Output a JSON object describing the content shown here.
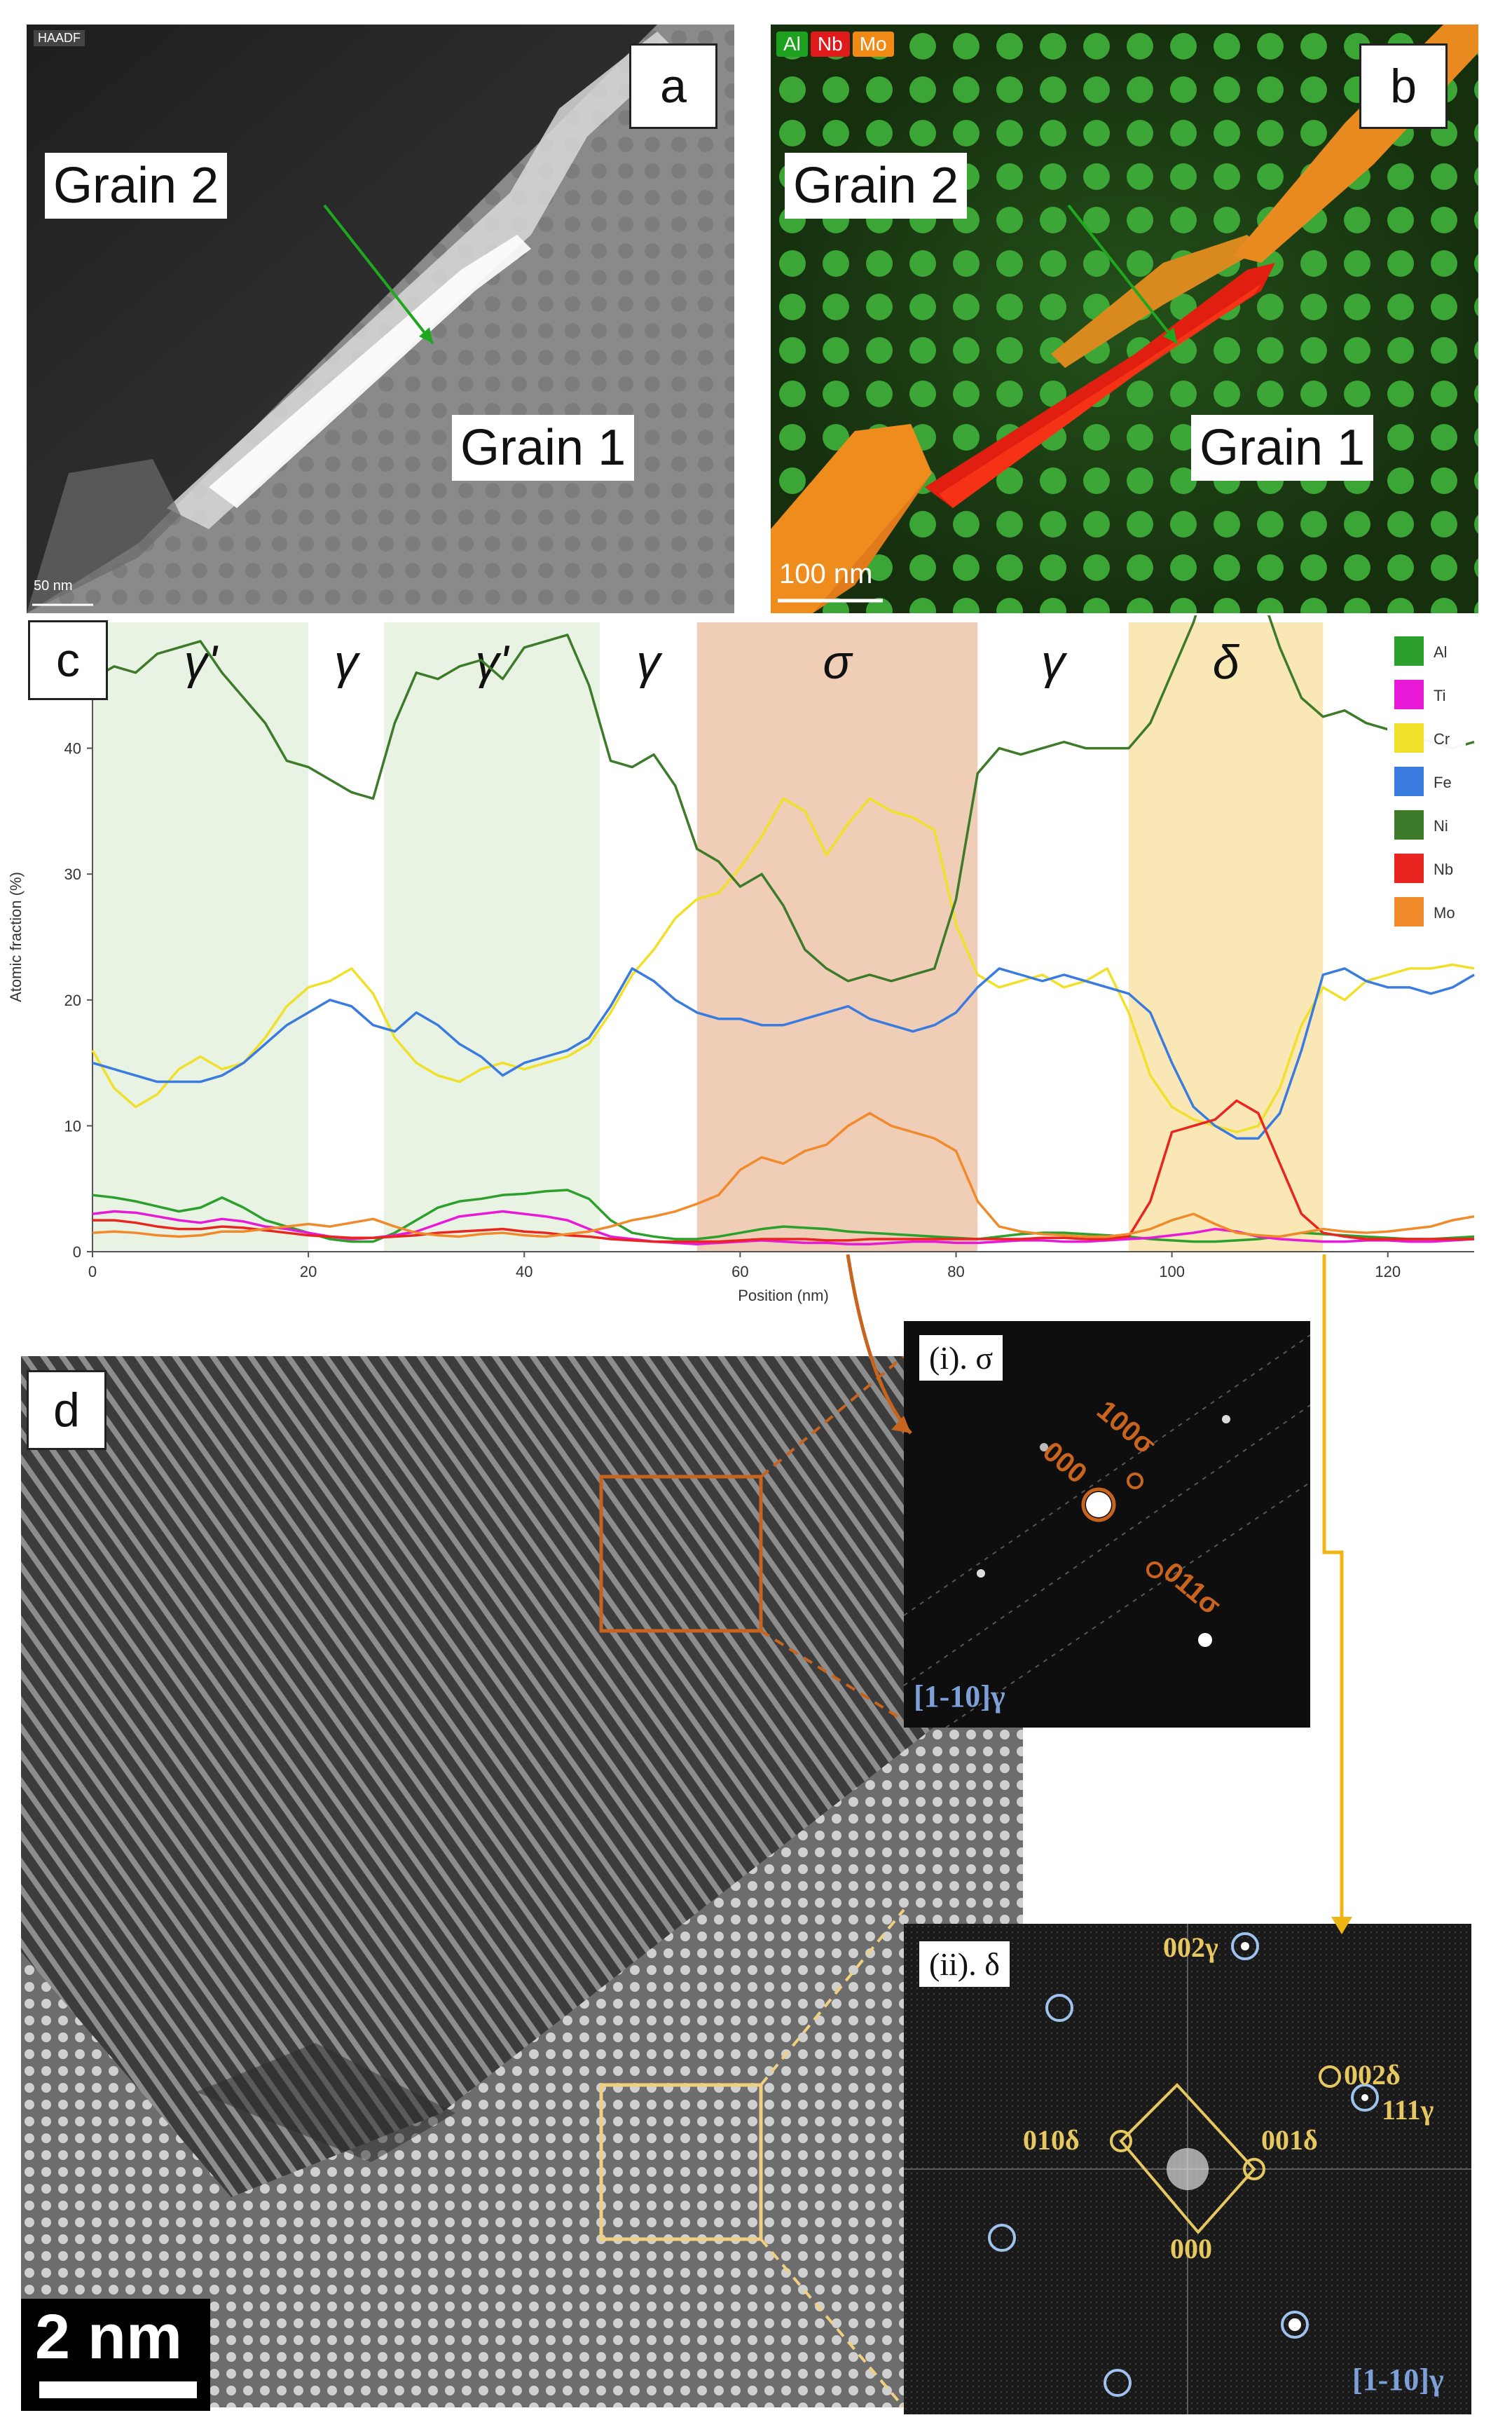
{
  "panel_a": {
    "letter": "a",
    "detector_label": "HAADF",
    "grain2": "Grain 2",
    "grain1": "Grain 1",
    "scale_label": "50 nm"
  },
  "panel_b": {
    "letter": "b",
    "element_tags": [
      "Al",
      "Nb",
      "Mo"
    ],
    "element_colors": [
      "#1ea11e",
      "#e01a1a",
      "#f08a14"
    ],
    "grain2": "Grain 2",
    "grain1": "Grain 1",
    "scale_label": "100 nm"
  },
  "panel_c": {
    "letter": "c",
    "phase_labels": [
      "γ'",
      "γ",
      "γ'",
      "γ",
      "σ",
      "γ",
      "δ"
    ]
  },
  "panel_d": {
    "letter": "d",
    "scale_label": "2 nm",
    "inset_sigma": {
      "title": "(i). σ",
      "spot_labels": [
        "100σ",
        "000",
        "011σ"
      ],
      "zone_axis": "[1-10]γ"
    },
    "inset_delta": {
      "title": "(ii). δ",
      "spot_labels": [
        "002γ",
        "010δ",
        "001δ",
        "002δ",
        "111γ",
        "000"
      ],
      "zone_axis": "[1-10]γ"
    }
  },
  "chart_data": {
    "type": "line",
    "title": "",
    "xlabel": "Position (nm)",
    "ylabel": "Atomic fraction (%)",
    "xlim": [
      0,
      128
    ],
    "ylim": [
      0,
      50
    ],
    "xticks": [
      0,
      20,
      40,
      60,
      80,
      100,
      120
    ],
    "yticks": [
      0,
      10,
      20,
      30,
      40
    ],
    "grid": false,
    "legend_position": "top-right",
    "phase_regions": [
      {
        "label": "γ'",
        "from": 0,
        "to": 20,
        "color": "#e9f3e4"
      },
      {
        "label": "γ",
        "from": 20,
        "to": 27,
        "color": "#ffffff"
      },
      {
        "label": "γ'",
        "from": 27,
        "to": 47,
        "color": "#e9f3e4"
      },
      {
        "label": "γ",
        "from": 47,
        "to": 56,
        "color": "#ffffff"
      },
      {
        "label": "σ",
        "from": 56,
        "to": 82,
        "color": "#efcdb6"
      },
      {
        "label": "γ",
        "from": 82,
        "to": 96,
        "color": "#ffffff"
      },
      {
        "label": "δ",
        "from": 96,
        "to": 114,
        "color": "#f9e7b6"
      }
    ],
    "x": [
      0,
      2,
      4,
      6,
      8,
      10,
      12,
      14,
      16,
      18,
      20,
      22,
      24,
      26,
      28,
      30,
      32,
      34,
      36,
      38,
      40,
      42,
      44,
      46,
      48,
      50,
      52,
      54,
      56,
      58,
      60,
      62,
      64,
      66,
      68,
      70,
      72,
      74,
      76,
      78,
      80,
      82,
      84,
      86,
      88,
      90,
      92,
      94,
      96,
      98,
      100,
      102,
      104,
      106,
      108,
      110,
      112,
      114,
      116,
      118,
      120,
      122,
      124,
      126,
      128
    ],
    "series": [
      {
        "name": "Al",
        "color": "#2ca02c",
        "values": [
          4.5,
          4.3,
          4.0,
          3.6,
          3.2,
          3.5,
          4.3,
          3.5,
          2.5,
          2.0,
          1.5,
          1.0,
          0.8,
          0.8,
          1.5,
          2.5,
          3.5,
          4.0,
          4.2,
          4.5,
          4.6,
          4.8,
          4.9,
          4.2,
          2.5,
          1.5,
          1.2,
          1.0,
          1.0,
          1.2,
          1.5,
          1.8,
          2.0,
          1.9,
          1.8,
          1.6,
          1.5,
          1.4,
          1.3,
          1.2,
          1.1,
          1.0,
          1.2,
          1.4,
          1.5,
          1.5,
          1.4,
          1.3,
          1.2,
          1.0,
          0.9,
          0.8,
          0.8,
          0.9,
          1.0,
          1.2,
          1.5,
          1.4,
          1.3,
          1.2,
          1.1,
          1.0,
          1.0,
          1.1,
          1.2
        ]
      },
      {
        "name": "Ti",
        "color": "#e81ad8",
        "values": [
          3.0,
          3.2,
          3.1,
          2.8,
          2.5,
          2.3,
          2.6,
          2.4,
          2.0,
          1.8,
          1.5,
          1.2,
          1.0,
          1.1,
          1.3,
          1.6,
          2.2,
          2.8,
          3.0,
          3.2,
          3.0,
          2.8,
          2.5,
          1.8,
          1.2,
          1.0,
          0.8,
          0.7,
          0.6,
          0.7,
          0.8,
          0.9,
          0.8,
          0.7,
          0.7,
          0.6,
          0.6,
          0.7,
          0.8,
          0.8,
          0.7,
          0.7,
          0.8,
          0.9,
          0.9,
          0.8,
          0.8,
          0.9,
          1.0,
          1.1,
          1.3,
          1.5,
          1.8,
          1.6,
          1.2,
          1.0,
          0.9,
          0.8,
          0.8,
          0.9,
          0.9,
          0.8,
          0.8,
          0.9,
          1.0
        ]
      },
      {
        "name": "Cr",
        "color": "#f0e02a",
        "values": [
          16.0,
          13.0,
          11.5,
          12.5,
          14.5,
          15.5,
          14.5,
          15.0,
          17.0,
          19.5,
          21.0,
          21.5,
          22.5,
          20.5,
          17.0,
          15.0,
          14.0,
          13.5,
          14.5,
          15.0,
          14.5,
          15.0,
          15.5,
          16.5,
          19.0,
          22.0,
          24.0,
          26.5,
          28.0,
          28.5,
          30.5,
          33.0,
          36.0,
          35.0,
          31.5,
          34.0,
          36.0,
          35.0,
          34.5,
          33.5,
          26.0,
          22.0,
          21.0,
          21.5,
          22.0,
          21.0,
          21.5,
          22.5,
          19.0,
          14.0,
          11.5,
          10.5,
          10.0,
          9.5,
          10.0,
          13.0,
          18.0,
          21.0,
          20.0,
          21.5,
          22.0,
          22.5,
          22.5,
          22.8,
          22.5
        ]
      },
      {
        "name": "Fe",
        "color": "#3a7be0",
        "values": [
          15.0,
          14.5,
          14.0,
          13.5,
          13.5,
          13.5,
          14.0,
          15.0,
          16.5,
          18.0,
          19.0,
          20.0,
          19.5,
          18.0,
          17.5,
          19.0,
          18.0,
          16.5,
          15.5,
          14.0,
          15.0,
          15.5,
          16.0,
          17.0,
          19.5,
          22.5,
          21.5,
          20.0,
          19.0,
          18.5,
          18.5,
          18.0,
          18.0,
          18.5,
          19.0,
          19.5,
          18.5,
          18.0,
          17.5,
          18.0,
          19.0,
          21.0,
          22.5,
          22.0,
          21.5,
          22.0,
          21.5,
          21.0,
          20.5,
          19.0,
          15.0,
          11.5,
          10.0,
          9.0,
          9.0,
          11.0,
          16.0,
          22.0,
          22.5,
          21.5,
          21.0,
          21.0,
          20.5,
          21.0,
          22.0
        ]
      },
      {
        "name": "Ni",
        "color": "#3d7a2a",
        "values": [
          45.5,
          46.5,
          46.0,
          47.5,
          48.0,
          48.5,
          46.0,
          44.0,
          42.0,
          39.0,
          38.5,
          37.5,
          36.5,
          36.0,
          42.0,
          46.0,
          45.5,
          46.5,
          47.0,
          45.5,
          48.0,
          48.5,
          49.0,
          45.0,
          39.0,
          38.5,
          39.5,
          37.0,
          32.0,
          31.0,
          29.0,
          30.0,
          27.5,
          24.0,
          22.5,
          21.5,
          22.0,
          21.5,
          22.0,
          22.5,
          28.0,
          38.0,
          40.0,
          39.5,
          40.0,
          40.5,
          40.0,
          40.0,
          40.0,
          42.0,
          46.0,
          50.0,
          55.5,
          55.0,
          53.0,
          48.0,
          44.0,
          42.5,
          43.0,
          42.0,
          41.5,
          41.0,
          40.5,
          40.0,
          40.5
        ]
      },
      {
        "name": "Nb",
        "color": "#e8251f",
        "values": [
          2.5,
          2.5,
          2.3,
          2.0,
          1.8,
          1.8,
          2.0,
          1.9,
          1.7,
          1.5,
          1.3,
          1.2,
          1.1,
          1.1,
          1.2,
          1.3,
          1.5,
          1.6,
          1.7,
          1.8,
          1.6,
          1.5,
          1.3,
          1.2,
          1.0,
          0.9,
          0.8,
          0.8,
          0.8,
          0.8,
          0.9,
          1.0,
          1.0,
          1.0,
          0.9,
          0.9,
          1.0,
          1.0,
          1.0,
          1.0,
          1.0,
          1.0,
          1.0,
          1.0,
          1.1,
          1.1,
          1.0,
          1.0,
          1.2,
          4.0,
          9.5,
          10.0,
          10.5,
          12.0,
          11.0,
          7.0,
          3.0,
          1.5,
          1.2,
          1.0,
          1.0,
          1.0,
          1.0,
          1.0,
          1.0
        ]
      },
      {
        "name": "Mo",
        "color": "#f08a2a",
        "values": [
          1.5,
          1.6,
          1.5,
          1.3,
          1.2,
          1.3,
          1.6,
          1.6,
          1.8,
          2.0,
          2.2,
          2.0,
          2.3,
          2.6,
          2.0,
          1.5,
          1.3,
          1.2,
          1.4,
          1.5,
          1.3,
          1.2,
          1.4,
          1.6,
          2.0,
          2.5,
          2.8,
          3.2,
          3.8,
          4.5,
          6.5,
          7.5,
          7.0,
          8.0,
          8.5,
          10.0,
          11.0,
          10.0,
          9.5,
          9.0,
          8.0,
          4.0,
          2.0,
          1.6,
          1.4,
          1.3,
          1.2,
          1.2,
          1.4,
          1.8,
          2.5,
          3.0,
          2.2,
          1.5,
          1.3,
          1.2,
          1.5,
          1.8,
          1.6,
          1.5,
          1.6,
          1.8,
          2.0,
          2.5,
          2.8
        ]
      }
    ]
  }
}
